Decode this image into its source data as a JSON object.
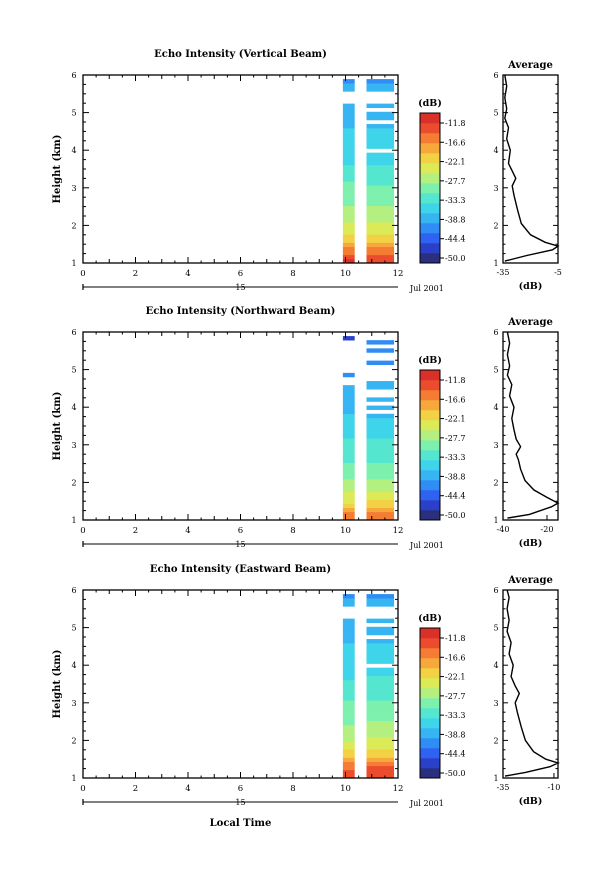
{
  "chart_data": [
    {
      "type": "heatmap",
      "title": "Echo Intensity (Vertical Beam)",
      "xlabel": "",
      "ylabel": "Height (km)",
      "xlim": [
        0,
        12
      ],
      "ylim": [
        1,
        6
      ],
      "x_ticks": [
        "0",
        "2",
        "4",
        "6",
        "8",
        "10",
        "12"
      ],
      "y_ticks": [
        "1",
        "2",
        "3",
        "4",
        "5",
        "6"
      ],
      "date_axis": {
        "day_label": "15",
        "month_year": "Jul 2001"
      },
      "colorbar": {
        "unit": "(dB)",
        "tick_labels": [
          "-11.8",
          "-16.6",
          "-22.1",
          "-27.7",
          "-33.3",
          "-38.8",
          "-44.4",
          "-50.0"
        ]
      },
      "average_panel": {
        "title": "Average",
        "xlabel": "(dB)",
        "x_ticks": [
          "-35",
          "-5"
        ],
        "xlim": [
          -35,
          -5
        ],
        "profile": [
          [
            -34,
            1.05
          ],
          [
            -22,
            1.2
          ],
          [
            -8,
            1.35
          ],
          [
            -5,
            1.45
          ],
          [
            -12,
            1.55
          ],
          [
            -20,
            1.75
          ],
          [
            -25,
            2.05
          ],
          [
            -27,
            2.4
          ],
          [
            -29,
            2.8
          ],
          [
            -30,
            3.05
          ],
          [
            -28,
            3.25
          ],
          [
            -30,
            3.45
          ],
          [
            -32,
            3.65
          ],
          [
            -31,
            4.0
          ],
          [
            -33,
            4.3
          ],
          [
            -32,
            4.6
          ],
          [
            -34,
            4.85
          ],
          [
            -33,
            5.1
          ],
          [
            -34,
            5.4
          ],
          [
            -33,
            5.7
          ],
          [
            -34,
            6.0
          ]
        ]
      },
      "echo_rows": [
        [
          -11,
          -12
        ],
        [
          -13,
          -13
        ],
        [
          -15,
          -15
        ],
        [
          -17,
          -16
        ],
        [
          -19,
          -18
        ],
        [
          -20,
          -20
        ],
        [
          -22,
          -22
        ],
        [
          -23,
          -23
        ],
        [
          -24,
          -24
        ],
        [
          -25,
          -25
        ],
        [
          -26,
          -26
        ],
        [
          -27,
          -27
        ],
        [
          -27,
          -28
        ],
        [
          -28,
          -28
        ],
        [
          -29,
          -29
        ],
        [
          -29,
          -29
        ],
        [
          -29,
          -30
        ],
        [
          -30,
          -30
        ],
        [
          -30,
          -30
        ],
        [
          -30,
          -31
        ],
        [
          -31,
          -31
        ],
        [
          -32,
          -32
        ],
        [
          -33,
          -32
        ],
        [
          -33,
          -33
        ],
        [
          -34,
          -34
        ],
        [
          -34,
          -34
        ],
        [
          -34,
          -35
        ],
        [
          -35,
          null
        ],
        [
          -35,
          -34
        ],
        [
          -35,
          -35
        ],
        [
          -36,
          -36
        ],
        [
          -36,
          -36
        ],
        [
          -36,
          -36
        ],
        [
          -37,
          -37
        ],
        [
          -37,
          null
        ],
        [
          -37,
          -37
        ],
        [
          -38,
          -38
        ],
        [
          -38,
          null
        ],
        [
          -38,
          -37
        ],
        [
          null,
          null
        ],
        [
          null,
          null
        ],
        [
          null,
          null
        ],
        [
          -39,
          -39
        ],
        [
          -39,
          -38
        ],
        [
          -40,
          -40
        ],
        [
          null,
          null
        ]
      ]
    },
    {
      "type": "heatmap",
      "title": "Echo Intensity (Northward Beam)",
      "xlabel": "",
      "ylabel": "Height (km)",
      "xlim": [
        0,
        12
      ],
      "ylim": [
        1,
        6
      ],
      "x_ticks": [
        "0",
        "2",
        "4",
        "6",
        "8",
        "10",
        "12"
      ],
      "y_ticks": [
        "1",
        "2",
        "3",
        "4",
        "5",
        "6"
      ],
      "date_axis": {
        "day_label": "15",
        "month_year": "Jul 2001"
      },
      "colorbar": {
        "unit": "(dB)",
        "tick_labels": [
          "-11.8",
          "-16.6",
          "-22.1",
          "-27.7",
          "-33.3",
          "-38.8",
          "-44.4",
          "-50.0"
        ]
      },
      "average_panel": {
        "title": "Average",
        "xlabel": "(dB)",
        "x_ticks": [
          "-40",
          "-20"
        ],
        "xlim": [
          -40,
          -15
        ],
        "profile": [
          [
            -38,
            1.05
          ],
          [
            -28,
            1.15
          ],
          [
            -18,
            1.35
          ],
          [
            -15,
            1.45
          ],
          [
            -20,
            1.6
          ],
          [
            -26,
            1.8
          ],
          [
            -30,
            2.05
          ],
          [
            -32,
            2.35
          ],
          [
            -33,
            2.6
          ],
          [
            -34,
            2.75
          ],
          [
            -32,
            2.95
          ],
          [
            -34,
            3.15
          ],
          [
            -35,
            3.4
          ],
          [
            -36,
            3.7
          ],
          [
            -35,
            4.0
          ],
          [
            -37,
            4.3
          ],
          [
            -36,
            4.6
          ],
          [
            -38,
            4.85
          ],
          [
            -37,
            5.1
          ],
          [
            -38,
            5.4
          ],
          [
            -37,
            5.7
          ],
          [
            -38,
            6.0
          ]
        ]
      },
      "echo_rows": [
        [
          -15,
          -15
        ],
        [
          -17,
          -16
        ],
        [
          -19,
          -18
        ],
        [
          -21,
          -20
        ],
        [
          -23,
          -22
        ],
        [
          -24,
          -24
        ],
        [
          -25,
          -25
        ],
        [
          -26,
          -26
        ],
        [
          -27,
          -27
        ],
        [
          -28,
          -28
        ],
        [
          -29,
          -29
        ],
        [
          -29,
          -29
        ],
        [
          -30,
          -30
        ],
        [
          -30,
          -30
        ],
        [
          -31,
          -31
        ],
        [
          -31,
          -31
        ],
        [
          -32,
          -32
        ],
        [
          -32,
          -32
        ],
        [
          -33,
          -33
        ],
        [
          -33,
          -33
        ],
        [
          -34,
          -34
        ],
        [
          -34,
          -35
        ],
        [
          -35,
          -35
        ],
        [
          -35,
          -36
        ],
        [
          -36,
          -36
        ],
        [
          -36,
          -37
        ],
        [
          -37,
          null
        ],
        [
          -37,
          -37
        ],
        [
          -38,
          null
        ],
        [
          -38,
          -38
        ],
        [
          -38,
          null
        ],
        [
          -39,
          null
        ],
        [
          -39,
          -39
        ],
        [
          null,
          -39
        ],
        [
          null,
          null
        ],
        [
          -40,
          null
        ],
        [
          null,
          null
        ],
        [
          null,
          null
        ],
        [
          null,
          -40
        ],
        [
          null,
          null
        ],
        [
          null,
          null
        ],
        [
          null,
          -41
        ],
        [
          null,
          null
        ],
        [
          null,
          -41
        ],
        [
          -45,
          null
        ],
        [
          null,
          null
        ]
      ]
    },
    {
      "type": "heatmap",
      "title": "Echo Intensity (Eastward Beam)",
      "xlabel": "Local Time",
      "ylabel": "Height (km)",
      "xlim": [
        0,
        12
      ],
      "ylim": [
        1,
        6
      ],
      "x_ticks": [
        "0",
        "2",
        "4",
        "6",
        "8",
        "10",
        "12"
      ],
      "y_ticks": [
        "1",
        "2",
        "3",
        "4",
        "5",
        "6"
      ],
      "date_axis": {
        "day_label": "15",
        "month_year": "Jul 2001"
      },
      "colorbar": {
        "unit": "(dB)",
        "tick_labels": [
          "-11.8",
          "-16.6",
          "-22.1",
          "-27.7",
          "-33.3",
          "-38.8",
          "-44.4",
          "-50.0"
        ]
      },
      "average_panel": {
        "title": "Average",
        "xlabel": "(dB)",
        "x_ticks": [
          "-35",
          "-10"
        ],
        "xlim": [
          -35,
          -8
        ],
        "profile": [
          [
            -34,
            1.05
          ],
          [
            -24,
            1.15
          ],
          [
            -12,
            1.3
          ],
          [
            -8,
            1.4
          ],
          [
            -14,
            1.5
          ],
          [
            -20,
            1.7
          ],
          [
            -24,
            2.0
          ],
          [
            -26,
            2.35
          ],
          [
            -28,
            2.75
          ],
          [
            -29,
            3.0
          ],
          [
            -27,
            3.25
          ],
          [
            -29,
            3.45
          ],
          [
            -31,
            3.7
          ],
          [
            -30,
            4.0
          ],
          [
            -32,
            4.3
          ],
          [
            -31,
            4.6
          ],
          [
            -33,
            4.9
          ],
          [
            -32,
            5.2
          ],
          [
            -33,
            5.5
          ],
          [
            -32,
            5.8
          ],
          [
            -33,
            6.0
          ]
        ]
      },
      "echo_rows": [
        [
          -12,
          -12
        ],
        [
          -13,
          -13
        ],
        [
          -15,
          -14
        ],
        [
          -17,
          -16
        ],
        [
          -19,
          -18
        ],
        [
          -21,
          -20
        ],
        [
          -22,
          -22
        ],
        [
          -24,
          -23
        ],
        [
          -25,
          -24
        ],
        [
          -26,
          -25
        ],
        [
          -27,
          -26
        ],
        [
          -27,
          -27
        ],
        [
          -28,
          -28
        ],
        [
          -29,
          -28
        ],
        [
          -29,
          -29
        ],
        [
          -29,
          -29
        ],
        [
          -30,
          -30
        ],
        [
          -30,
          -30
        ],
        [
          -30,
          -30
        ],
        [
          -31,
          -31
        ],
        [
          -31,
          -31
        ],
        [
          -32,
          -32
        ],
        [
          -32,
          -32
        ],
        [
          -33,
          -33
        ],
        [
          -34,
          -33
        ],
        [
          -34,
          -34
        ],
        [
          -34,
          -35
        ],
        [
          -35,
          null
        ],
        [
          -35,
          -34
        ],
        [
          -35,
          -35
        ],
        [
          -36,
          -36
        ],
        [
          -36,
          -36
        ],
        [
          -36,
          -36
        ],
        [
          -37,
          -37
        ],
        [
          -37,
          null
        ],
        [
          -37,
          -37
        ],
        [
          -38,
          -38
        ],
        [
          -38,
          null
        ],
        [
          -38,
          -37
        ],
        [
          null,
          null
        ],
        [
          null,
          null
        ],
        [
          null,
          null
        ],
        [
          -39,
          -39
        ],
        [
          -39,
          -38
        ],
        [
          -40,
          -40
        ],
        [
          null,
          null
        ]
      ]
    }
  ],
  "colorbar_colors": [
    "#2a2f7e",
    "#2b40c8",
    "#2f62f0",
    "#2f8df5",
    "#36b5f2",
    "#3ed4e9",
    "#55e6d0",
    "#7ef0ae",
    "#b3f080",
    "#dbea56",
    "#f2d244",
    "#f6a93a",
    "#f47c33",
    "#eb4c2e",
    "#d9302a"
  ]
}
